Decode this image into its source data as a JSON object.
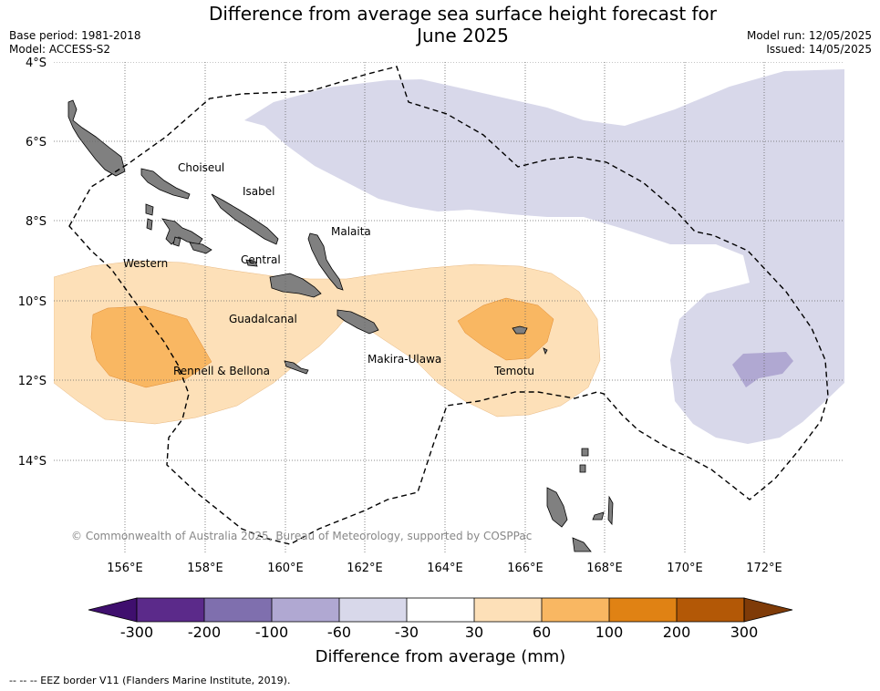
{
  "header": {
    "title_line1": "Difference from average sea surface height forecast for",
    "title_line2": "June 2025",
    "base_period": "Base period: 1981-2018",
    "model": "Model: ACCESS-S2",
    "model_run": "Model run: 12/05/2025",
    "issued": "Issued: 14/05/2025"
  },
  "map": {
    "lat_labels": [
      "4°S",
      "6°S",
      "8°S",
      "10°S",
      "12°S",
      "14°S"
    ],
    "lon_labels": [
      "156°E",
      "158°E",
      "160°E",
      "162°E",
      "164°E",
      "166°E",
      "168°E",
      "170°E",
      "172°E"
    ],
    "province_labels": [
      "Choiseul",
      "Isabel",
      "Malaita",
      "Western",
      "Central",
      "Guadalcanal",
      "Rennell & Bellona",
      "Makira-Ulawa",
      "Temotu"
    ],
    "copyright": "© Commonwealth of Australia 2025, Bureau of Meteorology, supported by COSPPac",
    "colors": {
      "land": "#808080",
      "neg_30_60": "#d8d8ea",
      "neg_60_100": "#b0a8d2",
      "pos_30_60": "#fde0b8",
      "pos_60_100": "#f9b762"
    }
  },
  "colorbar": {
    "ticks": [
      "-300",
      "-200",
      "-100",
      "-60",
      "-30",
      "30",
      "60",
      "100",
      "200",
      "300"
    ],
    "colors": [
      "#3f0f6e",
      "#5b2a8a",
      "#7f6fae",
      "#b0a8d2",
      "#d8d8ea",
      "#ffffff",
      "#fde0b8",
      "#f9b762",
      "#e08214",
      "#b35806",
      "#7f3b08"
    ],
    "label": "Difference from average (mm)"
  },
  "footer": {
    "legend": "--  --  -- EEZ border V11 (Flanders Marine Institute, 2019)."
  }
}
